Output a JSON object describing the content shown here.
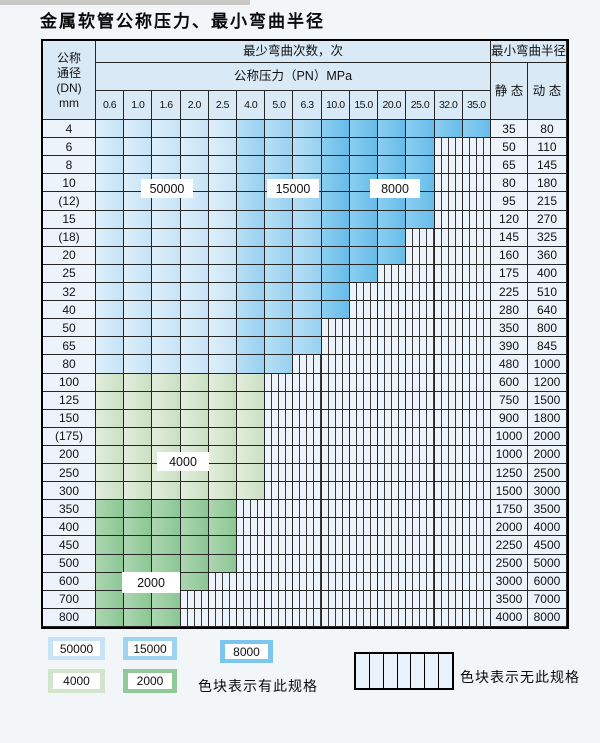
{
  "title": "金属软管公称压力、最小弯曲半径",
  "table": {
    "header": {
      "dn_lines": [
        "公称",
        "通径",
        "(DN)",
        "mm"
      ],
      "cycles_title": "最少弯曲次数，次",
      "pressure_title": "公称压力（PN）MPa",
      "pressure_columns": [
        "0.6",
        "1.0",
        "1.6",
        "2.0",
        "2.5",
        "4.0",
        "5.0",
        "6.3",
        "10.0",
        "15.0",
        "20.0",
        "25.0",
        "32.0",
        "35.0"
      ],
      "radius_title": "最小弯曲半径",
      "static_label": "静 态",
      "dynamic_label": "动 态"
    },
    "rows": [
      {
        "dn": "4",
        "static_r": "35",
        "dynamic_r": "80",
        "bands": [
          [
            5,
            "b50000"
          ],
          [
            3,
            "b15000"
          ],
          [
            6,
            "b8000"
          ]
        ]
      },
      {
        "dn": "6",
        "static_r": "50",
        "dynamic_r": "110",
        "bands": [
          [
            5,
            "b50000"
          ],
          [
            3,
            "b15000"
          ],
          [
            4,
            "b8000"
          ]
        ]
      },
      {
        "dn": "8",
        "static_r": "65",
        "dynamic_r": "145",
        "bands": [
          [
            5,
            "b50000"
          ],
          [
            3,
            "b15000"
          ],
          [
            4,
            "b8000"
          ]
        ]
      },
      {
        "dn": "10",
        "static_r": "80",
        "dynamic_r": "180",
        "bands": [
          [
            5,
            "b50000"
          ],
          [
            3,
            "b15000"
          ],
          [
            4,
            "b8000"
          ]
        ]
      },
      {
        "dn": "(12)",
        "static_r": "95",
        "dynamic_r": "215",
        "bands": [
          [
            5,
            "b50000"
          ],
          [
            3,
            "b15000"
          ],
          [
            4,
            "b8000"
          ]
        ]
      },
      {
        "dn": "15",
        "static_r": "120",
        "dynamic_r": "270",
        "bands": [
          [
            5,
            "b50000"
          ],
          [
            3,
            "b15000"
          ],
          [
            4,
            "b8000"
          ]
        ]
      },
      {
        "dn": "(18)",
        "static_r": "145",
        "dynamic_r": "325",
        "bands": [
          [
            5,
            "b50000"
          ],
          [
            3,
            "b15000"
          ],
          [
            3,
            "b8000"
          ]
        ]
      },
      {
        "dn": "20",
        "static_r": "160",
        "dynamic_r": "360",
        "bands": [
          [
            5,
            "b50000"
          ],
          [
            3,
            "b15000"
          ],
          [
            3,
            "b8000"
          ]
        ]
      },
      {
        "dn": "25",
        "static_r": "175",
        "dynamic_r": "400",
        "bands": [
          [
            5,
            "b50000"
          ],
          [
            3,
            "b15000"
          ],
          [
            2,
            "b8000"
          ]
        ]
      },
      {
        "dn": "32",
        "static_r": "225",
        "dynamic_r": "510",
        "bands": [
          [
            5,
            "b50000"
          ],
          [
            3,
            "b15000"
          ],
          [
            1,
            "b8000"
          ]
        ]
      },
      {
        "dn": "40",
        "static_r": "280",
        "dynamic_r": "640",
        "bands": [
          [
            5,
            "b50000"
          ],
          [
            3,
            "b15000"
          ],
          [
            1,
            "b8000"
          ]
        ]
      },
      {
        "dn": "50",
        "static_r": "350",
        "dynamic_r": "800",
        "bands": [
          [
            5,
            "b50000"
          ],
          [
            3,
            "b15000"
          ]
        ]
      },
      {
        "dn": "65",
        "static_r": "390",
        "dynamic_r": "845",
        "bands": [
          [
            5,
            "b50000"
          ],
          [
            3,
            "b15000"
          ]
        ]
      },
      {
        "dn": "80",
        "static_r": "480",
        "dynamic_r": "1000",
        "bands": [
          [
            5,
            "b50000"
          ],
          [
            2,
            "b15000"
          ]
        ]
      },
      {
        "dn": "100",
        "static_r": "600",
        "dynamic_r": "1200",
        "bands": [
          [
            6,
            "g4000"
          ]
        ]
      },
      {
        "dn": "125",
        "static_r": "750",
        "dynamic_r": "1500",
        "bands": [
          [
            6,
            "g4000"
          ]
        ]
      },
      {
        "dn": "150",
        "static_r": "900",
        "dynamic_r": "1800",
        "bands": [
          [
            6,
            "g4000"
          ]
        ]
      },
      {
        "dn": "(175)",
        "static_r": "1000",
        "dynamic_r": "2000",
        "bands": [
          [
            6,
            "g4000"
          ]
        ]
      },
      {
        "dn": "200",
        "static_r": "1000",
        "dynamic_r": "2000",
        "bands": [
          [
            6,
            "g4000"
          ]
        ]
      },
      {
        "dn": "250",
        "static_r": "1250",
        "dynamic_r": "2500",
        "bands": [
          [
            6,
            "g4000"
          ]
        ]
      },
      {
        "dn": "300",
        "static_r": "1500",
        "dynamic_r": "3000",
        "bands": [
          [
            6,
            "g4000"
          ]
        ]
      },
      {
        "dn": "350",
        "static_r": "1750",
        "dynamic_r": "3500",
        "bands": [
          [
            5,
            "g2000"
          ]
        ]
      },
      {
        "dn": "400",
        "static_r": "2000",
        "dynamic_r": "4000",
        "bands": [
          [
            5,
            "g2000"
          ]
        ]
      },
      {
        "dn": "450",
        "static_r": "2250",
        "dynamic_r": "4500",
        "bands": [
          [
            5,
            "g2000"
          ]
        ]
      },
      {
        "dn": "500",
        "static_r": "2500",
        "dynamic_r": "5000",
        "bands": [
          [
            5,
            "g2000"
          ]
        ]
      },
      {
        "dn": "600",
        "static_r": "3000",
        "dynamic_r": "6000",
        "bands": [
          [
            4,
            "g2000"
          ]
        ]
      },
      {
        "dn": "700",
        "static_r": "3500",
        "dynamic_r": "7000",
        "bands": [
          [
            3,
            "g2000"
          ]
        ]
      },
      {
        "dn": "800",
        "static_r": "4000",
        "dynamic_r": "8000",
        "bands": [
          [
            3,
            "g2000"
          ]
        ]
      }
    ],
    "zone_labels": [
      {
        "id": "lab-50000",
        "text": "50000"
      },
      {
        "id": "lab-15000",
        "text": "15000"
      },
      {
        "id": "lab-8000",
        "text": "8000"
      },
      {
        "id": "lab-4000",
        "text": "4000"
      },
      {
        "id": "lab-2000",
        "text": "2000"
      }
    ]
  },
  "colors": {
    "b50000": [
      "#ddeffb",
      "#c6e3f6"
    ],
    "b15000": [
      "#b7dff6",
      "#98d0f0"
    ],
    "b8000": [
      "#8bcef1",
      "#66bce9"
    ],
    "g4000": [
      "#e2eedb",
      "#cbdfc3"
    ],
    "g2000": [
      "#add6b0",
      "#8bc694"
    ],
    "header_bg": "#d9e9f6",
    "hatch_bg": "#edf3fa",
    "grid_line": "#262626"
  },
  "legend": {
    "items": [
      {
        "text": "50000",
        "color": "#c8e3f6"
      },
      {
        "text": "15000",
        "color": "#9ed4f1"
      },
      {
        "text": "8000",
        "color": "#7cc5ed"
      },
      {
        "text": "4000",
        "color": "#d2e4cb"
      },
      {
        "text": "2000",
        "color": "#92c99b"
      }
    ],
    "present_note": "色块表示有此规格",
    "absent_note": "色块表示无此规格"
  }
}
